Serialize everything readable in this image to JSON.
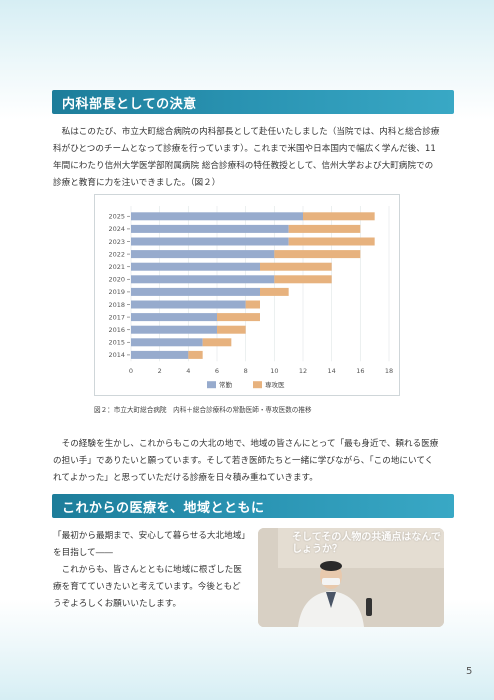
{
  "section1": {
    "title": "内科部長としての決意",
    "paragraphs": [
      "私はこのたび、市立大町総合病院の内科部長として赴任いたしました（当院では、内科と総合診療科がひとつのチームとなって診療を行っています）。これまで米国や日本国内で幅広く学んだ後、11年間にわたり信州大学医学部附属病院 総合診療科の特任教授として、信州大学および大町病院での診療と教育に力を注いできました。（図２）"
    ]
  },
  "chart_data": {
    "type": "bar",
    "orientation": "horizontal",
    "stacked": true,
    "categories": [
      "2025",
      "2024",
      "2023",
      "2022",
      "2021",
      "2020",
      "2019",
      "2018",
      "2017",
      "2016",
      "2015",
      "2014"
    ],
    "series": [
      {
        "name": "常勤",
        "color": "#97abcd",
        "values": [
          12,
          11,
          11,
          10,
          9,
          10,
          9,
          8,
          6,
          6,
          5,
          4
        ]
      },
      {
        "name": "専攻医",
        "color": "#e7b27e",
        "values": [
          5,
          5,
          6,
          6,
          5,
          4,
          2,
          1,
          3,
          2,
          2,
          1
        ]
      }
    ],
    "xlim": [
      0,
      18
    ],
    "xticks": [
      "0",
      "2",
      "4",
      "6",
      "8",
      "10",
      "12",
      "14",
      "16",
      "18"
    ],
    "grid": true,
    "legend": "bottom"
  },
  "figure_caption": "図２：市立大町総合病院　内科＋総合診療科の常勤医師・専攻医数の推移",
  "section1_closing": "その経験を生かし、これからもこの大北の地で、地域の皆さんにとって「最も身近で、頼れる医療の担い手」でありたいと願っています。そして若き医師たちと一緒に学びながら、「この地にいてくれてよかった」と思っていただける診療を日々積み重ねていきます。",
  "section2": {
    "title": "これからの医療を、地域とともに",
    "paragraphs": [
      "「最初から最期まで、安心して暮らせる大北地域」を目指して――",
      "これからも、皆さんとともに地域に根ざした医療を育てていきたいと考えています。今後ともどうぞよろしくお願いいたします。"
    ]
  },
  "photo": {
    "slide_text": "そしてその人物の共通点はなんでしょうか？"
  },
  "page_number": "5"
}
